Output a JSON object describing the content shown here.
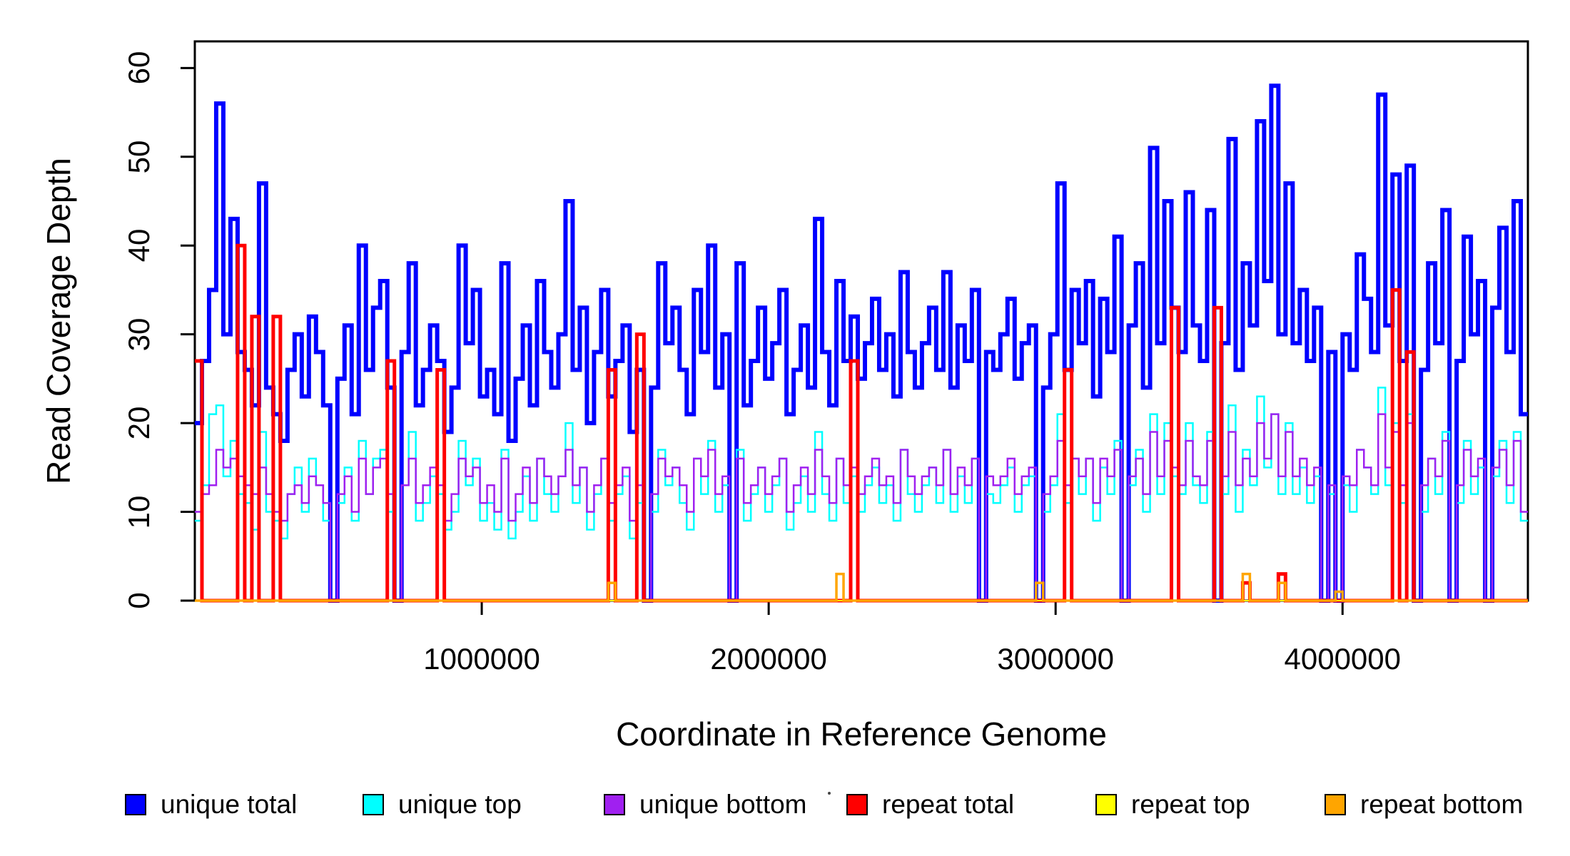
{
  "chart_data": {
    "type": "line",
    "style": "step-after",
    "title": "",
    "xlabel": "Coordinate in Reference Genome",
    "ylabel": "Read Coverage Depth",
    "x_range": [
      1,
      4646000
    ],
    "y_range": [
      0,
      63
    ],
    "grid": false,
    "legend_position": "bottom",
    "bin_size_bp": 25000,
    "n_bins": 187,
    "x_ticks": [
      {
        "value": 1000000,
        "label": "1000000"
      },
      {
        "value": 2000000,
        "label": "2000000"
      },
      {
        "value": 3000000,
        "label": "3000000"
      },
      {
        "value": 4000000,
        "label": "4000000"
      }
    ],
    "y_ticks": [
      {
        "value": 0,
        "label": "0"
      },
      {
        "value": 10,
        "label": "10"
      },
      {
        "value": 20,
        "label": "20"
      },
      {
        "value": 30,
        "label": "30"
      },
      {
        "value": 40,
        "label": "40"
      },
      {
        "value": 50,
        "label": "50"
      },
      {
        "value": 60,
        "label": "60"
      }
    ],
    "series": [
      {
        "name": "unique total",
        "color": "#0000FF",
        "line_width": 6,
        "values": [
          20,
          27,
          35,
          56,
          30,
          43,
          28,
          26,
          22,
          47,
          24,
          21,
          18,
          26,
          30,
          23,
          32,
          28,
          22,
          0,
          25,
          31,
          21,
          40,
          26,
          33,
          36,
          24,
          0,
          28,
          38,
          22,
          26,
          31,
          27,
          19,
          24,
          40,
          29,
          35,
          23,
          26,
          21,
          38,
          18,
          25,
          31,
          22,
          36,
          28,
          24,
          30,
          45,
          26,
          33,
          20,
          28,
          35,
          23,
          27,
          31,
          19,
          26,
          0,
          24,
          38,
          29,
          33,
          26,
          21,
          35,
          28,
          40,
          24,
          30,
          0,
          38,
          22,
          27,
          33,
          25,
          29,
          35,
          21,
          26,
          31,
          24,
          43,
          28,
          22,
          36,
          27,
          32,
          25,
          29,
          34,
          26,
          30,
          23,
          37,
          28,
          24,
          29,
          33,
          26,
          37,
          24,
          31,
          27,
          35,
          0,
          28,
          26,
          30,
          34,
          25,
          29,
          31,
          0,
          24,
          30,
          47,
          26,
          35,
          29,
          36,
          23,
          34,
          28,
          41,
          0,
          31,
          38,
          24,
          51,
          29,
          45,
          33,
          28,
          46,
          31,
          27,
          44,
          0,
          29,
          52,
          26,
          38,
          31,
          54,
          36,
          58,
          30,
          47,
          29,
          35,
          27,
          33,
          0,
          28,
          0,
          30,
          26,
          39,
          34,
          28,
          57,
          31,
          48,
          27,
          49,
          0,
          26,
          38,
          29,
          44,
          0,
          27,
          41,
          30,
          36,
          0,
          33,
          42,
          28,
          45,
          21
        ]
      },
      {
        "name": "unique top",
        "color": "#00FFFF",
        "line_width": 2.5,
        "values": [
          9,
          13,
          21,
          22,
          14,
          18,
          12,
          11,
          8,
          19,
          10,
          9,
          7,
          12,
          15,
          10,
          16,
          13,
          9,
          0,
          11,
          15,
          9,
          18,
          12,
          16,
          17,
          10,
          0,
          13,
          19,
          9,
          11,
          14,
          12,
          8,
          10,
          18,
          13,
          16,
          9,
          11,
          8,
          17,
          7,
          10,
          14,
          9,
          16,
          12,
          10,
          14,
          20,
          11,
          15,
          8,
          12,
          16,
          9,
          12,
          14,
          7,
          11,
          0,
          10,
          17,
          13,
          15,
          11,
          8,
          16,
          12,
          18,
          10,
          13,
          0,
          17,
          9,
          12,
          15,
          10,
          13,
          16,
          8,
          11,
          14,
          10,
          19,
          12,
          9,
          16,
          11,
          14,
          10,
          13,
          15,
          11,
          13,
          9,
          17,
          12,
          10,
          13,
          15,
          11,
          17,
          10,
          14,
          11,
          16,
          0,
          12,
          11,
          13,
          15,
          10,
          13,
          14,
          0,
          10,
          13,
          21,
          11,
          16,
          12,
          16,
          9,
          15,
          12,
          18,
          0,
          13,
          17,
          10,
          21,
          12,
          20,
          14,
          12,
          20,
          13,
          11,
          19,
          0,
          12,
          22,
          10,
          17,
          13,
          23,
          15,
          21,
          12,
          20,
          12,
          15,
          11,
          14,
          0,
          12,
          0,
          13,
          10,
          17,
          15,
          12,
          24,
          13,
          20,
          11,
          21,
          0,
          10,
          16,
          12,
          19,
          0,
          11,
          18,
          12,
          15,
          0,
          14,
          18,
          11,
          19,
          9
        ]
      },
      {
        "name": "unique bottom",
        "color": "#A020F0",
        "line_width": 2.5,
        "values": [
          10,
          12,
          13,
          17,
          15,
          16,
          14,
          13,
          12,
          15,
          12,
          10,
          9,
          12,
          13,
          11,
          14,
          13,
          11,
          0,
          12,
          14,
          10,
          16,
          12,
          15,
          16,
          12,
          0,
          13,
          16,
          11,
          13,
          15,
          13,
          9,
          12,
          16,
          14,
          15,
          11,
          13,
          10,
          16,
          9,
          12,
          15,
          11,
          16,
          14,
          12,
          14,
          17,
          13,
          15,
          10,
          13,
          16,
          11,
          13,
          15,
          9,
          13,
          0,
          12,
          16,
          14,
          15,
          13,
          10,
          16,
          14,
          17,
          12,
          14,
          0,
          16,
          11,
          13,
          15,
          12,
          14,
          16,
          10,
          13,
          15,
          12,
          17,
          14,
          11,
          16,
          13,
          15,
          12,
          14,
          16,
          13,
          14,
          11,
          17,
          14,
          12,
          14,
          15,
          13,
          17,
          12,
          15,
          13,
          16,
          0,
          14,
          13,
          14,
          16,
          12,
          14,
          15,
          0,
          12,
          14,
          18,
          13,
          16,
          14,
          16,
          11,
          16,
          14,
          17,
          0,
          14,
          16,
          12,
          19,
          14,
          18,
          15,
          13,
          18,
          14,
          13,
          18,
          0,
          14,
          19,
          13,
          16,
          14,
          20,
          16,
          21,
          14,
          19,
          14,
          16,
          13,
          15,
          0,
          13,
          0,
          14,
          13,
          17,
          15,
          13,
          21,
          15,
          19,
          13,
          20,
          0,
          13,
          16,
          14,
          18,
          0,
          13,
          17,
          14,
          16,
          0,
          15,
          17,
          13,
          18,
          10
        ]
      },
      {
        "name": "repeat total",
        "color": "#FF0000",
        "line_width": 5,
        "default": 0,
        "spikes": [
          [
            0,
            27
          ],
          [
            6,
            40
          ],
          [
            8,
            32
          ],
          [
            11,
            32
          ],
          [
            27,
            27
          ],
          [
            34,
            26
          ],
          [
            58,
            26
          ],
          [
            62,
            30
          ],
          [
            92,
            27
          ],
          [
            122,
            26
          ],
          [
            137,
            33
          ],
          [
            143,
            33
          ],
          [
            147,
            2
          ],
          [
            152,
            3
          ],
          [
            168,
            35
          ],
          [
            170,
            28
          ]
        ]
      },
      {
        "name": "repeat top",
        "color": "#FFFF00",
        "line_width": 2,
        "default": 0,
        "spikes": []
      },
      {
        "name": "repeat bottom",
        "color": "#FFA500",
        "line_width": 3.5,
        "default": 0,
        "spikes": [
          [
            58,
            2
          ],
          [
            90,
            3
          ],
          [
            118,
            2
          ],
          [
            147,
            3
          ],
          [
            152,
            2
          ],
          [
            160,
            1
          ]
        ]
      }
    ]
  },
  "legend": {
    "items": [
      {
        "label": "unique total",
        "color": "#0000FF"
      },
      {
        "label": "unique top",
        "color": "#00FFFF"
      },
      {
        "label": "unique bottom",
        "color": "#A020F0"
      },
      {
        "label": "repeat total",
        "color": "#FF0000"
      },
      {
        "label": "repeat top",
        "color": "#FFFF00"
      },
      {
        "label": "repeat bottom",
        "color": "#FFA500"
      }
    ]
  },
  "layout_colors": {
    "axis": "#000000",
    "background": "#FFFFFF"
  }
}
